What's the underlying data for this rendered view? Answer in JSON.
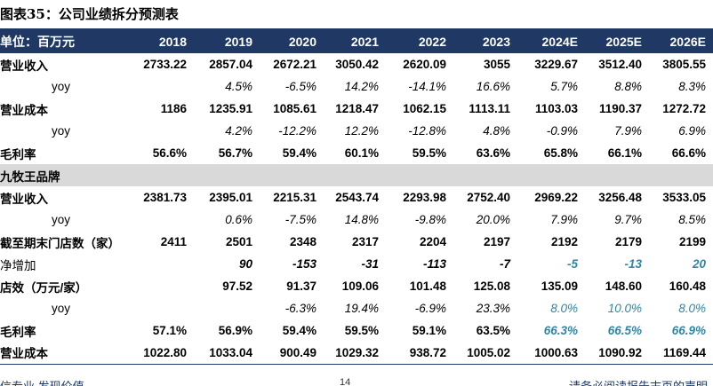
{
  "title": "图表35：公司业绩拆分预测表",
  "header": {
    "unit_label": "单位：百万元",
    "years": [
      "2018",
      "2019",
      "2020",
      "2021",
      "2022",
      "2023",
      "2024E",
      "2025E",
      "2026E"
    ]
  },
  "rows": [
    {
      "label": "营业收入",
      "type": "bold",
      "values": [
        "2733.22",
        "2857.04",
        "2672.21",
        "3050.42",
        "2620.09",
        "3055",
        "3229.67",
        "3512.40",
        "3805.55"
      ]
    },
    {
      "label": "yoy",
      "type": "yoy",
      "values": [
        "",
        "4.5%",
        "-6.5%",
        "14.2%",
        "-14.1%",
        "16.6%",
        "5.7%",
        "8.8%",
        "8.3%"
      ]
    },
    {
      "label": "营业成本",
      "type": "bold",
      "values": [
        "1186",
        "1235.91",
        "1085.61",
        "1218.47",
        "1062.15",
        "1113.11",
        "1103.03",
        "1190.37",
        "1272.72"
      ]
    },
    {
      "label": "yoy",
      "type": "yoy",
      "values": [
        "",
        "4.2%",
        "-12.2%",
        "12.2%",
        "-12.8%",
        "4.8%",
        "-0.9%",
        "7.9%",
        "6.9%"
      ]
    },
    {
      "label": "毛利率",
      "type": "bold",
      "values": [
        "56.6%",
        "56.7%",
        "59.4%",
        "60.1%",
        "59.5%",
        "63.6%",
        "65.8%",
        "66.1%",
        "66.6%"
      ]
    },
    {
      "label": "九牧王品牌",
      "type": "section",
      "values": []
    },
    {
      "label": "营业收入",
      "type": "bold",
      "values": [
        "2381.73",
        "2395.01",
        "2215.31",
        "2543.74",
        "2293.98",
        "2752.40",
        "2969.22",
        "3256.48",
        "3533.05"
      ]
    },
    {
      "label": "yoy",
      "type": "yoy",
      "values": [
        "",
        "0.6%",
        "-7.5%",
        "14.8%",
        "-9.8%",
        "20.0%",
        "7.9%",
        "9.7%",
        "8.5%"
      ]
    },
    {
      "label": "截至期末门店数（家）",
      "type": "bold",
      "values": [
        "2411",
        "2501",
        "2348",
        "2317",
        "2204",
        "2197",
        "2192",
        "2179",
        "2199"
      ]
    },
    {
      "label": "净增加",
      "type": "netadd",
      "values": [
        "",
        "90",
        "-153",
        "-31",
        "-113",
        "-7",
        "-5",
        "-13",
        "20"
      ],
      "forecast_cols": [
        6,
        7,
        8
      ]
    },
    {
      "label": "店效（万元/家）",
      "type": "bold",
      "values": [
        "",
        "97.52",
        "91.37",
        "109.06",
        "101.48",
        "125.08",
        "135.09",
        "148.60",
        "160.48"
      ]
    },
    {
      "label": "yoy",
      "type": "yoy",
      "values": [
        "",
        "",
        "-6.3%",
        "19.4%",
        "-6.9%",
        "23.3%",
        "8.0%",
        "10.0%",
        "8.0%"
      ],
      "forecast_cols": [
        6,
        7,
        8
      ]
    },
    {
      "label": "毛利率",
      "type": "bold",
      "values": [
        "57.1%",
        "56.9%",
        "59.4%",
        "59.5%",
        "59.1%",
        "63.5%",
        "66.3%",
        "66.5%",
        "66.9%"
      ],
      "forecast_cols": [
        6,
        7,
        8
      ],
      "forecast_italic": true
    },
    {
      "label": "营业成本",
      "type": "bold",
      "values": [
        "1022.80",
        "1033.04",
        "900.49",
        "1029.32",
        "938.72",
        "1005.02",
        "1000.63",
        "1090.92",
        "1169.44"
      ]
    }
  ],
  "footer": {
    "left": "信专业  发现价值",
    "page": "14",
    "right": "请务必阅读报告末页的声明"
  },
  "colors": {
    "header_bg": "#1f3864",
    "section_bg": "#d9d9d9",
    "forecast_text": "#2e86a8"
  }
}
